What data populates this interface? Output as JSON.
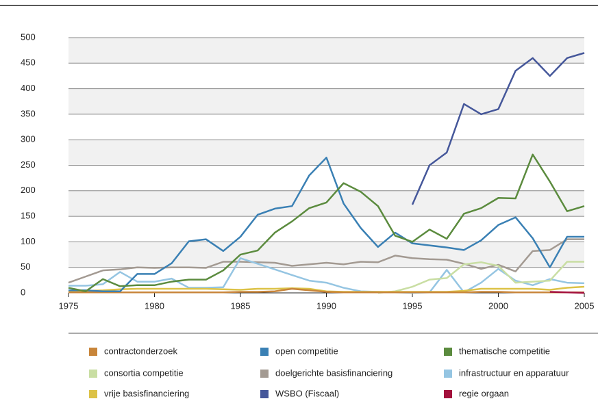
{
  "chart_data": {
    "type": "line",
    "x": [
      1975,
      1976,
      1977,
      1978,
      1979,
      1980,
      1981,
      1982,
      1983,
      1984,
      1985,
      1986,
      1987,
      1988,
      1989,
      1990,
      1991,
      1992,
      1993,
      1994,
      1995,
      1996,
      1997,
      1998,
      1999,
      2000,
      2001,
      2002,
      2003,
      2004,
      2005
    ],
    "xlim": [
      1975,
      2005
    ],
    "xticks": [
      1975,
      1980,
      1985,
      1990,
      1995,
      2000,
      2005
    ],
    "ylim": [
      0,
      500
    ],
    "yticks": [
      0,
      50,
      100,
      150,
      200,
      250,
      300,
      350,
      400,
      450,
      500
    ],
    "grid": true,
    "series": [
      {
        "name": "contractonderzoek",
        "color": "#c8853a",
        "values": [
          1,
          1,
          1,
          1,
          1,
          1,
          1,
          1,
          1,
          1,
          2,
          2,
          3,
          8,
          5,
          2,
          1,
          1,
          1,
          1,
          1,
          1,
          1,
          1,
          2,
          2,
          1,
          1,
          1,
          1,
          1
        ]
      },
      {
        "name": "open competitie",
        "color": "#3a80b4",
        "values": [
          5,
          5,
          3,
          3,
          37,
          37,
          58,
          101,
          105,
          82,
          110,
          153,
          165,
          170,
          230,
          265,
          175,
          127,
          90,
          118,
          97,
          93,
          89,
          84,
          103,
          133,
          148,
          107,
          50,
          110,
          110
        ]
      },
      {
        "name": "thematische competitie",
        "color": "#5b8b3e",
        "values": [
          10,
          3,
          27,
          13,
          15,
          15,
          22,
          26,
          26,
          44,
          75,
          83,
          118,
          140,
          166,
          177,
          215,
          198,
          170,
          112,
          100,
          124,
          106,
          155,
          166,
          186,
          185,
          271,
          218,
          160,
          170
        ]
      },
      {
        "name": "consortia competitie",
        "color": "#c9dea3",
        "values": [
          null,
          null,
          null,
          null,
          null,
          null,
          null,
          null,
          null,
          null,
          null,
          null,
          null,
          null,
          null,
          null,
          null,
          null,
          0,
          3,
          12,
          26,
          29,
          56,
          60,
          53,
          20,
          22,
          24,
          61,
          61
        ]
      },
      {
        "name": "doelgerichte basisfinanciering",
        "color": "#a39a92",
        "values": [
          20,
          32,
          44,
          46,
          50,
          49,
          50,
          50,
          49,
          61,
          61,
          60,
          59,
          53,
          56,
          59,
          56,
          61,
          60,
          73,
          68,
          66,
          65,
          57,
          47,
          55,
          42,
          82,
          84,
          105,
          105
        ]
      },
      {
        "name": "infrastructuur en apparatuur",
        "color": "#95c5e2",
        "values": [
          14,
          14,
          17,
          41,
          22,
          22,
          28,
          10,
          10,
          11,
          68,
          57,
          46,
          35,
          24,
          20,
          10,
          3,
          2,
          1,
          0,
          1,
          45,
          1,
          20,
          47,
          24,
          15,
          27,
          20,
          19
        ]
      },
      {
        "name": "vrije basisfinanciering",
        "color": "#dcc247",
        "values": [
          3,
          4,
          5,
          7,
          8,
          8,
          8,
          8,
          8,
          7,
          6,
          8,
          8,
          9,
          8,
          3,
          2,
          2,
          2,
          2,
          2,
          2,
          2,
          4,
          8,
          8,
          8,
          8,
          6,
          10,
          12
        ]
      },
      {
        "name": "WSBO (Fiscaal)",
        "color": "#45579a",
        "values": [
          null,
          null,
          null,
          null,
          null,
          null,
          null,
          null,
          null,
          null,
          null,
          null,
          null,
          null,
          null,
          null,
          null,
          null,
          null,
          null,
          173,
          250,
          275,
          370,
          350,
          360,
          435,
          460,
          425,
          460,
          470
        ]
      },
      {
        "name": "regie orgaan",
        "color": "#a3103c",
        "values": [
          null,
          null,
          null,
          null,
          null,
          null,
          null,
          null,
          null,
          null,
          null,
          null,
          null,
          null,
          null,
          null,
          null,
          null,
          null,
          null,
          null,
          null,
          null,
          null,
          null,
          null,
          null,
          null,
          2,
          1,
          0
        ]
      }
    ]
  }
}
